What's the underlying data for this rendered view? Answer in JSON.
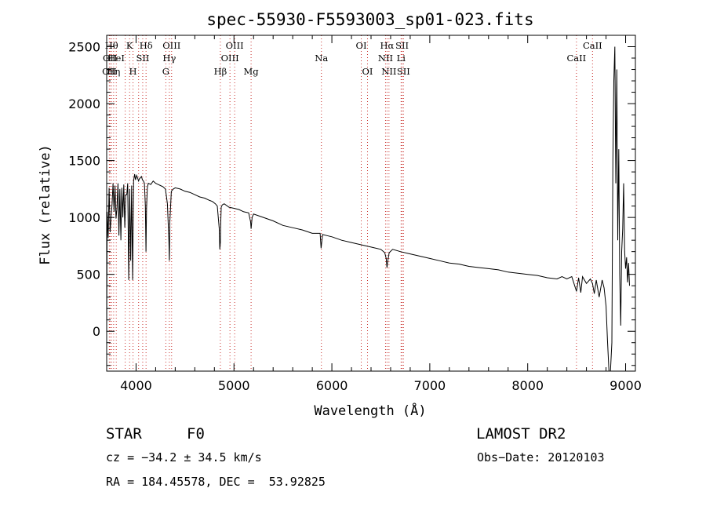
{
  "chart_data": {
    "type": "line",
    "title": "spec-55930-F5593003_sp01-023.fits",
    "xlabel": "Wavelength (Å)",
    "ylabel": "Flux (relative)",
    "xlim": [
      3700,
      9100
    ],
    "ylim": [
      -350,
      2600
    ],
    "xticks": [
      "4000",
      "5000",
      "6000",
      "7000",
      "8000",
      "9000"
    ],
    "yticks": [
      "0",
      "500",
      "1000",
      "1500",
      "2000",
      "2500"
    ],
    "grid": false,
    "series": [
      {
        "x": [
          3700,
          3705,
          3715,
          3725,
          3735,
          3745,
          3755,
          3765,
          3775,
          3785,
          3795,
          3805,
          3815,
          3825,
          3835,
          3845,
          3855,
          3865,
          3875,
          3885,
          3895,
          3905,
          3915,
          3925,
          3935,
          3945,
          3955,
          3965,
          3975,
          3985,
          3995,
          4005,
          4015,
          4025,
          4035,
          4045,
          4055,
          4065,
          4075,
          4085,
          4095,
          4101,
          4107,
          4115,
          4125,
          4150,
          4175,
          4200,
          4225,
          4250,
          4275,
          4300,
          4320,
          4335,
          4340,
          4345,
          4360,
          4380,
          4400,
          4450,
          4500,
          4550,
          4600,
          4650,
          4700,
          4750,
          4780,
          4810,
          4830,
          4850,
          4855,
          4861,
          4866,
          4870,
          4880,
          4900,
          4950,
          5000,
          5050,
          5100,
          5150,
          5170,
          5175,
          5185,
          5200,
          5300,
          5400,
          5500,
          5600,
          5700,
          5800,
          5880,
          5890,
          5896,
          5905,
          5950,
          6000,
          6100,
          6200,
          6300,
          6400,
          6500,
          6540,
          6555,
          6563,
          6570,
          6585,
          6620,
          6700,
          6800,
          6900,
          7000,
          7100,
          7200,
          7300,
          7400,
          7500,
          7600,
          7700,
          7800,
          7900,
          8000,
          8100,
          8200,
          8300,
          8350,
          8400,
          8450,
          8498,
          8520,
          8542,
          8560,
          8600,
          8640,
          8662,
          8680,
          8700,
          8730,
          8760,
          8780,
          8800,
          8815,
          8830,
          8845,
          8860,
          8870,
          8880,
          8890,
          8900,
          8910,
          8920,
          8930,
          8940,
          8950,
          8960,
          8970,
          8980,
          8990,
          9000,
          9010,
          9020,
          9030,
          9040
        ],
        "values": [
          -30,
          1050,
          820,
          1260,
          870,
          1000,
          1120,
          1300,
          1050,
          1280,
          990,
          1080,
          1300,
          840,
          1250,
          800,
          1260,
          1000,
          1290,
          910,
          1200,
          1200,
          1300,
          450,
          1250,
          620,
          1280,
          450,
          1320,
          1380,
          1330,
          1370,
          1350,
          1320,
          1340,
          1350,
          1360,
          1330,
          1320,
          1300,
          1100,
          700,
          1080,
          1260,
          1300,
          1290,
          1320,
          1300,
          1290,
          1280,
          1270,
          1250,
          1120,
          800,
          620,
          960,
          1230,
          1250,
          1260,
          1250,
          1230,
          1220,
          1200,
          1180,
          1170,
          1150,
          1140,
          1120,
          1100,
          900,
          720,
          780,
          980,
          1090,
          1110,
          1120,
          1090,
          1080,
          1070,
          1050,
          1040,
          960,
          900,
          1000,
          1030,
          1000,
          970,
          930,
          910,
          890,
          860,
          860,
          730,
          780,
          850,
          840,
          830,
          800,
          780,
          760,
          740,
          720,
          690,
          640,
          560,
          610,
          690,
          720,
          700,
          680,
          660,
          640,
          620,
          600,
          590,
          570,
          560,
          550,
          540,
          520,
          510,
          500,
          490,
          470,
          460,
          480,
          460,
          480,
          350,
          470,
          340,
          480,
          420,
          460,
          420,
          330,
          450,
          300,
          450,
          380,
          220,
          -80,
          -400,
          -350,
          -100,
          1500,
          2200,
          2500,
          1300,
          2300,
          800,
          1600,
          500,
          50,
          700,
          900,
          1300,
          700,
          550,
          650,
          430,
          600,
          400
        ],
        "line_color": "#000000"
      }
    ],
    "line_marks": {
      "line_color": "#c9302c",
      "lines": [
        {
          "x": 3727,
          "label": "OII",
          "row": 3
        },
        {
          "x": 3734,
          "label": "OII",
          "row": 2
        },
        {
          "x": 3750,
          "label": "Hθ",
          "row": 1
        },
        {
          "x": 3771,
          "label": "Hη",
          "row": 3
        },
        {
          "x": 3798,
          "label": "HeI",
          "row": 2
        },
        {
          "x": 3889,
          "label": "",
          "row": 0
        },
        {
          "x": 3934,
          "label": "K",
          "row": 1
        },
        {
          "x": 3969,
          "label": "H",
          "row": 3
        },
        {
          "x": 4026,
          "label": "",
          "row": 0
        },
        {
          "x": 4068,
          "label": "SII",
          "row": 2
        },
        {
          "x": 4102,
          "label": "Hδ",
          "row": 1
        },
        {
          "x": 4304,
          "label": "G",
          "row": 3
        },
        {
          "x": 4340,
          "label": "Hγ",
          "row": 2
        },
        {
          "x": 4363,
          "label": "OIII",
          "row": 1
        },
        {
          "x": 4861,
          "label": "Hβ",
          "row": 3
        },
        {
          "x": 4959,
          "label": "OIII",
          "row": 2
        },
        {
          "x": 5007,
          "label": "OIII",
          "row": 1
        },
        {
          "x": 5175,
          "label": "Mg",
          "row": 3
        },
        {
          "x": 5893,
          "label": "Na",
          "row": 2
        },
        {
          "x": 6300,
          "label": "OI",
          "row": 1
        },
        {
          "x": 6364,
          "label": "OI",
          "row": 3
        },
        {
          "x": 6548,
          "label": "NII",
          "row": 2
        },
        {
          "x": 6563,
          "label": "Hα",
          "row": 1
        },
        {
          "x": 6583,
          "label": "NII",
          "row": 3
        },
        {
          "x": 6707,
          "label": "Li",
          "row": 2
        },
        {
          "x": 6717,
          "label": "SII",
          "row": 1
        },
        {
          "x": 6731,
          "label": "SII",
          "row": 3
        },
        {
          "x": 8498,
          "label": "CaII",
          "row": 2
        },
        {
          "x": 8662,
          "label": "CaII",
          "row": 1
        }
      ]
    }
  },
  "info": {
    "class_label": "STAR",
    "subclass": "F0",
    "survey": "LAMOST DR2",
    "cz": "cz = −34.2 ± 34.5 km/s",
    "obs_date": "Obs−Date: 20120103",
    "coords": "RA = 184.45578, DEC =  53.92825"
  }
}
